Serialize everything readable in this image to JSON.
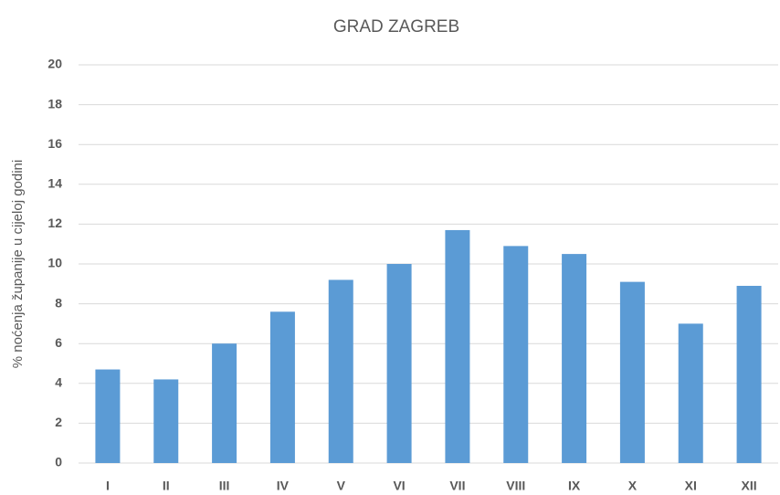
{
  "chart_data": {
    "type": "bar",
    "title": "GRAD ZAGREB",
    "y_label": "% noćenja županije u cijeloj godini",
    "categories": [
      "I",
      "II",
      "III",
      "IV",
      "V",
      "VI",
      "VII",
      "VIII",
      "IX",
      "X",
      "XI",
      "XII"
    ],
    "values": [
      4.7,
      4.2,
      6.0,
      7.6,
      9.2,
      10.0,
      11.7,
      10.9,
      10.5,
      9.1,
      7.0,
      8.9
    ],
    "color": "#5b9bd5",
    "ylim": [
      0,
      20
    ],
    "yticks": [
      0,
      2,
      4,
      6,
      8,
      10,
      12,
      14,
      16,
      18,
      20
    ],
    "grid": true
  }
}
